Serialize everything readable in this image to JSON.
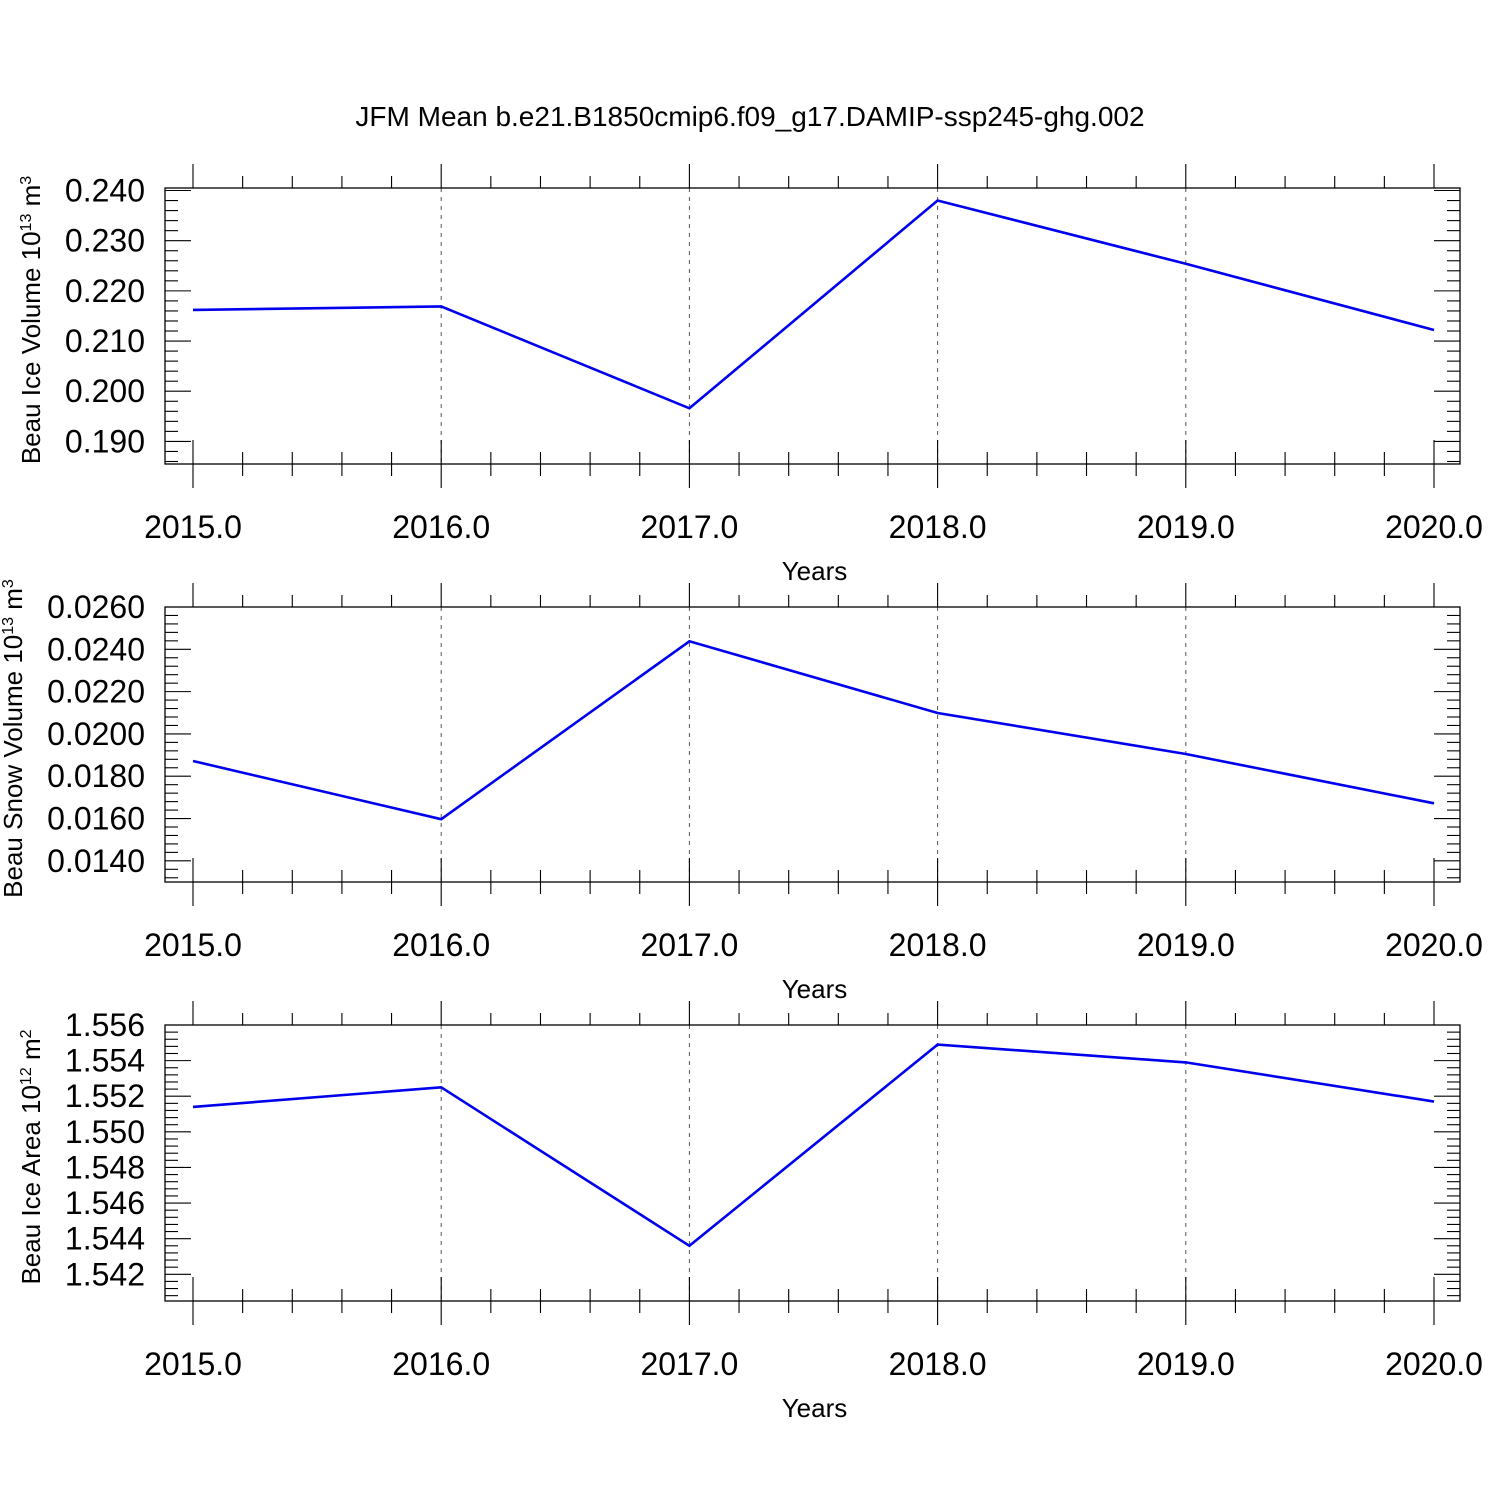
{
  "title": "JFM Mean b.e21.B1850cmip6.f09_g17.DAMIP-ssp245-ghg.002",
  "colors": {
    "line": "#0000ee",
    "axes": "#000000",
    "grid": "#555555"
  },
  "chart_data": [
    {
      "type": "line",
      "xlabel": "Years",
      "ylabel": {
        "prefix": "Beau Ice Volume 10",
        "exp": "13",
        "unit": " m",
        "unit_exp": "3"
      },
      "x": [
        2015,
        2016,
        2017,
        2018,
        2019,
        2020
      ],
      "series": [
        {
          "values": [
            0.2162,
            0.2169,
            0.1966,
            0.238,
            0.2254,
            0.2122
          ]
        }
      ],
      "xlim": [
        2015,
        2020.1
      ],
      "ylim": [
        0.1855,
        0.2405
      ],
      "xticks": [
        "2015.0",
        "2016.0",
        "2017.0",
        "2018.0",
        "2019.0",
        "2020.0"
      ],
      "yticks": [
        "0.190",
        "0.200",
        "0.210",
        "0.220",
        "0.230",
        "0.240"
      ],
      "grid": "vertical-dashed"
    },
    {
      "type": "line",
      "xlabel": "Years",
      "ylabel": {
        "prefix": "Beau Snow Volume 10",
        "exp": "13",
        "unit": " m",
        "unit_exp": "3"
      },
      "x": [
        2015,
        2016,
        2017,
        2018,
        2019,
        2020
      ],
      "series": [
        {
          "values": [
            0.01872,
            0.01597,
            0.02438,
            0.02099,
            0.01905,
            0.01672
          ]
        }
      ],
      "xlim": [
        2015,
        2020.1
      ],
      "ylim": [
        0.013,
        0.026
      ],
      "xticks": [
        "2015.0",
        "2016.0",
        "2017.0",
        "2018.0",
        "2019.0",
        "2020.0"
      ],
      "yticks": [
        "0.0140",
        "0.0160",
        "0.0180",
        "0.0200",
        "0.0220",
        "0.0240",
        "0.0260"
      ],
      "grid": "vertical-dashed"
    },
    {
      "type": "line",
      "xlabel": "Years",
      "ylabel": {
        "prefix": "Beau Ice Area 10",
        "exp": "12",
        "unit": " m",
        "unit_exp": "2"
      },
      "x": [
        2015,
        2016,
        2017,
        2018,
        2019,
        2020
      ],
      "series": [
        {
          "values": [
            1.5514,
            1.5525,
            1.5436,
            1.5549,
            1.5539,
            1.5517
          ]
        }
      ],
      "xlim": [
        2015,
        2020.1
      ],
      "ylim": [
        1.5405,
        1.556
      ],
      "xticks": [
        "2015.0",
        "2016.0",
        "2017.0",
        "2018.0",
        "2019.0",
        "2020.0"
      ],
      "yticks": [
        "1.542",
        "1.544",
        "1.546",
        "1.548",
        "1.550",
        "1.552",
        "1.554",
        "1.556"
      ],
      "grid": "vertical-dashed"
    }
  ]
}
